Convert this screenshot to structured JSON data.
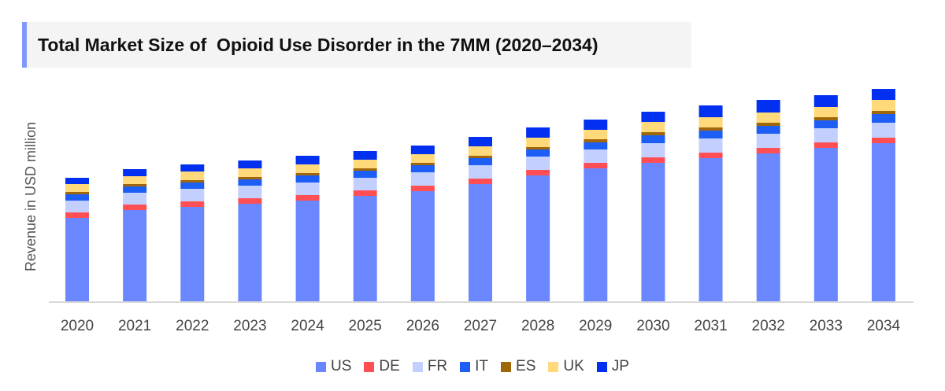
{
  "chart_data": {
    "type": "bar",
    "stacked": true,
    "title": "Total Market Size of  Opioid Use Disorder in the 7MM (2020–2034)",
    "xlabel": "",
    "ylabel": "Revenue in USD million",
    "categories": [
      "2020",
      "2021",
      "2022",
      "2023",
      "2024",
      "2025",
      "2026",
      "2027",
      "2028",
      "2029",
      "2030",
      "2031",
      "2032",
      "2033",
      "2034"
    ],
    "ylim": [
      0,
      290
    ],
    "grid": false,
    "legend_position": "bottom",
    "series": [
      {
        "name": "US",
        "color": "#6b87ff",
        "values": [
          106,
          116,
          120,
          124,
          128,
          134,
          140,
          149,
          160,
          169,
          176,
          182,
          188,
          195,
          201
        ]
      },
      {
        "name": "DE",
        "color": "#ff4f55",
        "values": [
          7,
          7,
          7,
          7,
          7,
          7,
          7,
          7,
          7,
          7,
          7,
          7,
          7,
          7,
          7
        ]
      },
      {
        "name": "FR",
        "color": "#c3cfff",
        "values": [
          15,
          15,
          16,
          16,
          16,
          16,
          17,
          17,
          17,
          17,
          18,
          18,
          18,
          18,
          19
        ]
      },
      {
        "name": "IT",
        "color": "#1d5ef5",
        "values": [
          8,
          8,
          8,
          8,
          9,
          9,
          9,
          9,
          9,
          9,
          10,
          10,
          10,
          10,
          11
        ]
      },
      {
        "name": "ES",
        "color": "#a0670a",
        "values": [
          3,
          3,
          3,
          3,
          3,
          3,
          3,
          3,
          3,
          4,
          4,
          4,
          4,
          4,
          4
        ]
      },
      {
        "name": "UK",
        "color": "#ffd97a",
        "values": [
          10,
          10,
          11,
          11,
          11,
          11,
          11,
          12,
          12,
          12,
          13,
          13,
          13,
          13,
          14
        ]
      },
      {
        "name": "JP",
        "color": "#0230f0",
        "values": [
          8,
          9,
          9,
          10,
          11,
          11,
          11,
          12,
          13,
          13,
          13,
          15,
          16,
          15,
          14
        ]
      }
    ]
  }
}
